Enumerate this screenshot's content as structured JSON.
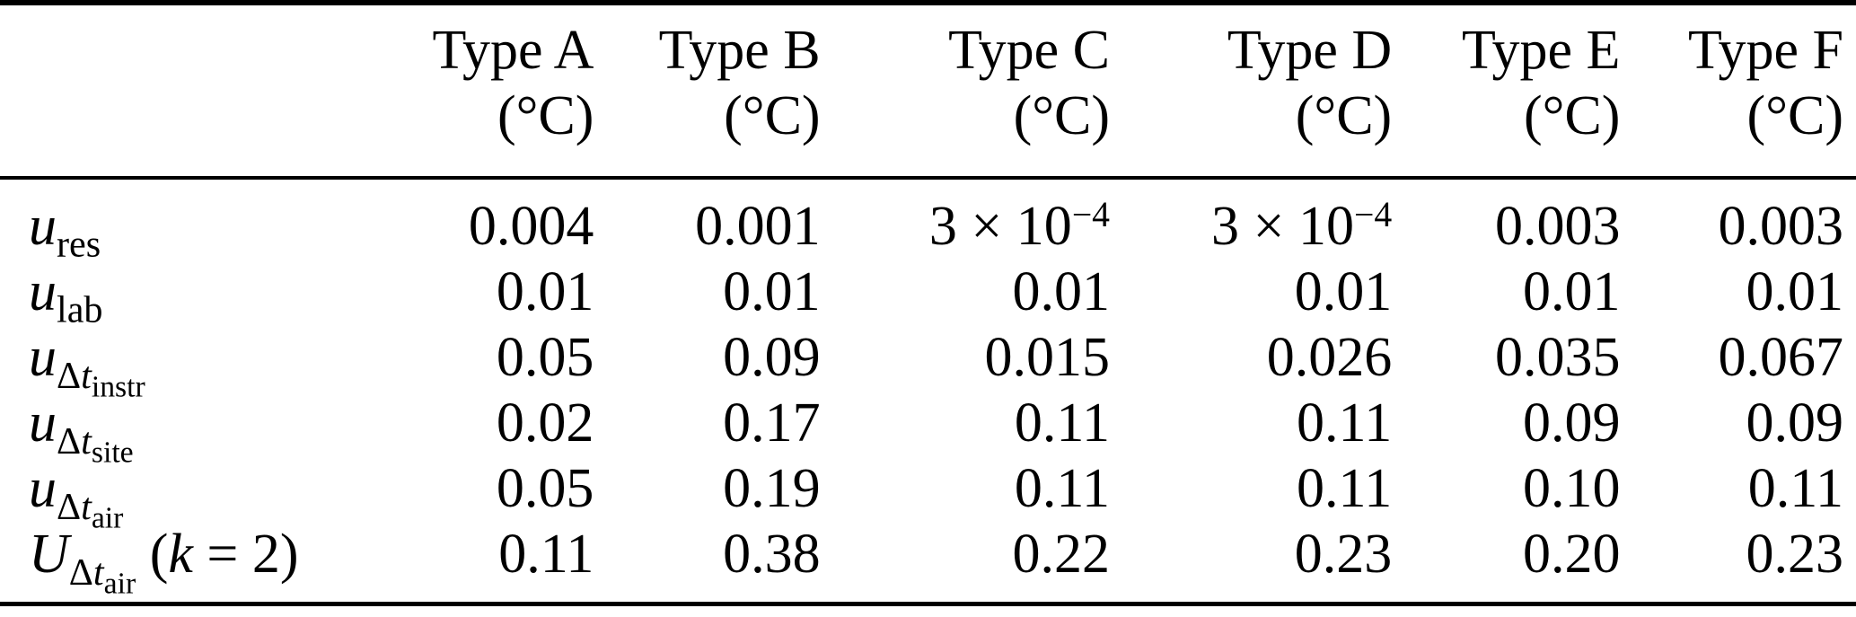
{
  "colors": {
    "background": "#ffffff",
    "text": "#000000",
    "rule": "#000000"
  },
  "table": {
    "header": {
      "row_label_column": "",
      "columns": [
        {
          "name": "Type A",
          "unit": "(°C)"
        },
        {
          "name": "Type B",
          "unit": "(°C)"
        },
        {
          "name": "Type C",
          "unit": "(°C)"
        },
        {
          "name": "Type D",
          "unit": "(°C)"
        },
        {
          "name": "Type E",
          "unit": "(°C)"
        },
        {
          "name": "Type F",
          "unit": "(°C)"
        }
      ]
    },
    "rows": [
      {
        "label_text": "u_res",
        "label_html": "<i>u</i><sub>res</sub>",
        "values": [
          "0.004",
          "0.001",
          "3 × 10⁻⁴",
          "3 × 10⁻⁴",
          "0.003",
          "0.003"
        ],
        "values_html": [
          "0.004",
          "0.001",
          "3 × 10<sup>−4</sup>",
          "3 × 10<sup>−4</sup>",
          "0.003",
          "0.003"
        ]
      },
      {
        "label_text": "u_lab",
        "label_html": "<i>u</i><sub>lab</sub>",
        "values": [
          "0.01",
          "0.01",
          "0.01",
          "0.01",
          "0.01",
          "0.01"
        ],
        "values_html": [
          "0.01",
          "0.01",
          "0.01",
          "0.01",
          "0.01",
          "0.01"
        ]
      },
      {
        "label_text": "u_Δt_instr",
        "label_html": "<i>u</i><sub>Δ<i>t</i><sub>instr</sub></sub>",
        "values": [
          "0.05",
          "0.09",
          "0.015",
          "0.026",
          "0.035",
          "0.067"
        ],
        "values_html": [
          "0.05",
          "0.09",
          "0.015",
          "0.026",
          "0.035",
          "0.067"
        ]
      },
      {
        "label_text": "u_Δt_site",
        "label_html": "<i>u</i><sub>Δ<i>t</i><sub>site</sub></sub>",
        "values": [
          "0.02",
          "0.17",
          "0.11",
          "0.11",
          "0.09",
          "0.09"
        ],
        "values_html": [
          "0.02",
          "0.17",
          "0.11",
          "0.11",
          "0.09",
          "0.09"
        ]
      },
      {
        "label_text": "u_Δt_air",
        "label_html": "<i>u</i><sub>Δ<i>t</i><sub>air</sub></sub>",
        "values": [
          "0.05",
          "0.19",
          "0.11",
          "0.11",
          "0.10",
          "0.11"
        ],
        "values_html": [
          "0.05",
          "0.19",
          "0.11",
          "0.11",
          "0.10",
          "0.11"
        ]
      },
      {
        "label_text": "U_Δt_air (k = 2)",
        "label_html": "<i>U</i><sub>Δ<i>t</i><sub>air</sub></sub> (<i>k</i> = 2)",
        "values": [
          "0.11",
          "0.38",
          "0.22",
          "0.23",
          "0.20",
          "0.23"
        ],
        "values_html": [
          "0.11",
          "0.38",
          "0.22",
          "0.23",
          "0.20",
          "0.23"
        ]
      }
    ]
  },
  "chart_data": {
    "type": "table",
    "title": "",
    "columns": [
      "",
      "Type A (°C)",
      "Type B (°C)",
      "Type C (°C)",
      "Type D (°C)",
      "Type E (°C)",
      "Type F (°C)"
    ],
    "rows": [
      [
        "u_res",
        "0.004",
        "0.001",
        "3 × 10⁻⁴",
        "3 × 10⁻⁴",
        "0.003",
        "0.003"
      ],
      [
        "u_lab",
        "0.01",
        "0.01",
        "0.01",
        "0.01",
        "0.01",
        "0.01"
      ],
      [
        "u_Δt_instr",
        "0.05",
        "0.09",
        "0.015",
        "0.026",
        "0.035",
        "0.067"
      ],
      [
        "u_Δt_site",
        "0.02",
        "0.17",
        "0.11",
        "0.11",
        "0.09",
        "0.09"
      ],
      [
        "u_Δt_air",
        "0.05",
        "0.19",
        "0.11",
        "0.11",
        "0.10",
        "0.11"
      ],
      [
        "U_Δt_air (k = 2)",
        "0.11",
        "0.38",
        "0.22",
        "0.23",
        "0.20",
        "0.23"
      ]
    ]
  }
}
